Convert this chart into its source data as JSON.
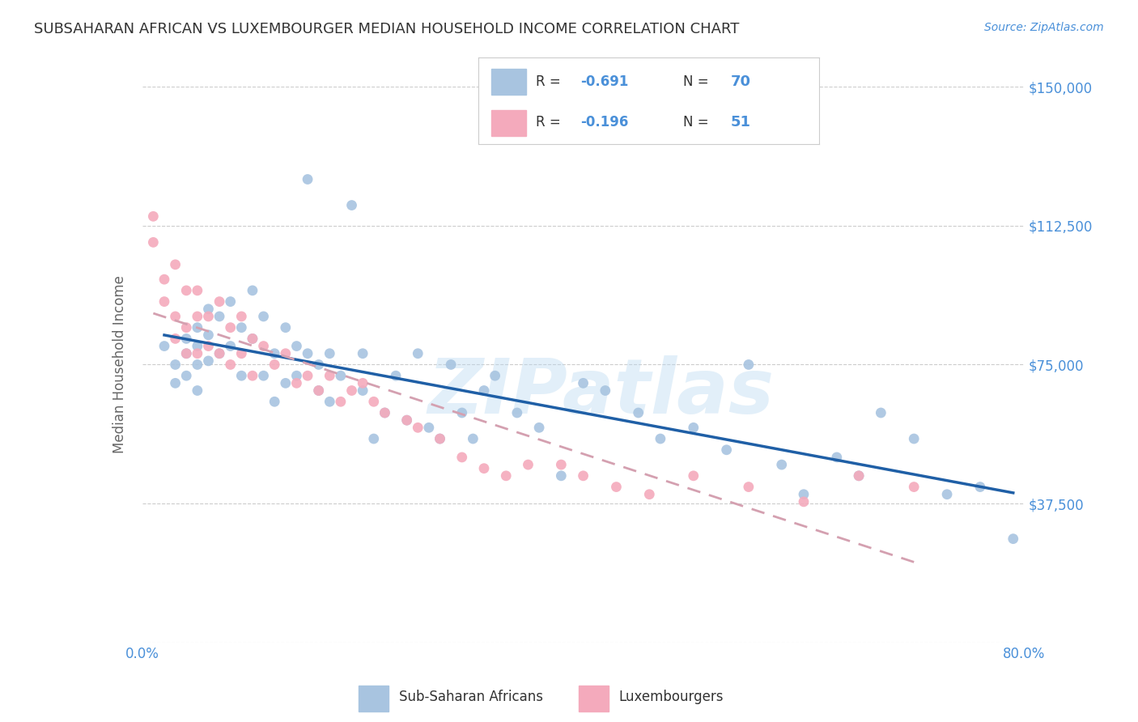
{
  "title": "SUBSAHARAN AFRICAN VS LUXEMBOURGER MEDIAN HOUSEHOLD INCOME CORRELATION CHART",
  "source": "Source: ZipAtlas.com",
  "ylabel": "Median Household Income",
  "yticks": [
    0,
    37500,
    75000,
    112500,
    150000
  ],
  "ytick_labels": [
    "",
    "$37,500",
    "$75,000",
    "$112,500",
    "$150,000"
  ],
  "xlim": [
    0.0,
    0.8
  ],
  "ylim": [
    0,
    150000
  ],
  "watermark": "ZIPatlas",
  "legend_r1": "-0.691",
  "legend_n1": "70",
  "legend_r2": "-0.196",
  "legend_n2": "51",
  "blue_color": "#A8C4E0",
  "pink_color": "#F4AABC",
  "blue_line_color": "#1F5FA6",
  "pink_line_color": "#D4A0B0",
  "axis_color": "#4A90D9",
  "title_color": "#333333",
  "grid_color": "#CCCCCC",
  "blue_scatter_x": [
    0.02,
    0.03,
    0.03,
    0.04,
    0.04,
    0.04,
    0.05,
    0.05,
    0.05,
    0.05,
    0.06,
    0.06,
    0.06,
    0.07,
    0.07,
    0.08,
    0.08,
    0.09,
    0.09,
    0.1,
    0.1,
    0.11,
    0.11,
    0.12,
    0.12,
    0.13,
    0.13,
    0.14,
    0.14,
    0.15,
    0.15,
    0.16,
    0.16,
    0.17,
    0.17,
    0.18,
    0.19,
    0.2,
    0.2,
    0.21,
    0.22,
    0.23,
    0.24,
    0.25,
    0.26,
    0.27,
    0.28,
    0.29,
    0.3,
    0.31,
    0.32,
    0.34,
    0.36,
    0.38,
    0.4,
    0.42,
    0.45,
    0.47,
    0.5,
    0.53,
    0.55,
    0.58,
    0.6,
    0.63,
    0.65,
    0.67,
    0.7,
    0.73,
    0.76,
    0.79
  ],
  "blue_scatter_y": [
    80000,
    75000,
    70000,
    82000,
    78000,
    72000,
    85000,
    80000,
    75000,
    68000,
    90000,
    83000,
    76000,
    88000,
    78000,
    92000,
    80000,
    85000,
    72000,
    95000,
    82000,
    88000,
    72000,
    78000,
    65000,
    85000,
    70000,
    80000,
    72000,
    78000,
    125000,
    68000,
    75000,
    78000,
    65000,
    72000,
    118000,
    78000,
    68000,
    55000,
    62000,
    72000,
    60000,
    78000,
    58000,
    55000,
    75000,
    62000,
    55000,
    68000,
    72000,
    62000,
    58000,
    45000,
    70000,
    68000,
    62000,
    55000,
    58000,
    52000,
    75000,
    48000,
    40000,
    50000,
    45000,
    62000,
    55000,
    40000,
    42000,
    28000
  ],
  "pink_scatter_x": [
    0.01,
    0.01,
    0.02,
    0.02,
    0.03,
    0.03,
    0.03,
    0.04,
    0.04,
    0.04,
    0.05,
    0.05,
    0.05,
    0.06,
    0.06,
    0.07,
    0.07,
    0.08,
    0.08,
    0.09,
    0.09,
    0.1,
    0.1,
    0.11,
    0.12,
    0.13,
    0.14,
    0.15,
    0.16,
    0.17,
    0.18,
    0.19,
    0.2,
    0.21,
    0.22,
    0.24,
    0.25,
    0.27,
    0.29,
    0.31,
    0.33,
    0.35,
    0.38,
    0.4,
    0.43,
    0.46,
    0.5,
    0.55,
    0.6,
    0.65,
    0.7
  ],
  "pink_scatter_y": [
    115000,
    108000,
    98000,
    92000,
    102000,
    88000,
    82000,
    95000,
    85000,
    78000,
    95000,
    88000,
    78000,
    88000,
    80000,
    92000,
    78000,
    85000,
    75000,
    88000,
    78000,
    82000,
    72000,
    80000,
    75000,
    78000,
    70000,
    72000,
    68000,
    72000,
    65000,
    68000,
    70000,
    65000,
    62000,
    60000,
    58000,
    55000,
    50000,
    47000,
    45000,
    48000,
    48000,
    45000,
    42000,
    40000,
    45000,
    42000,
    38000,
    45000,
    42000
  ]
}
